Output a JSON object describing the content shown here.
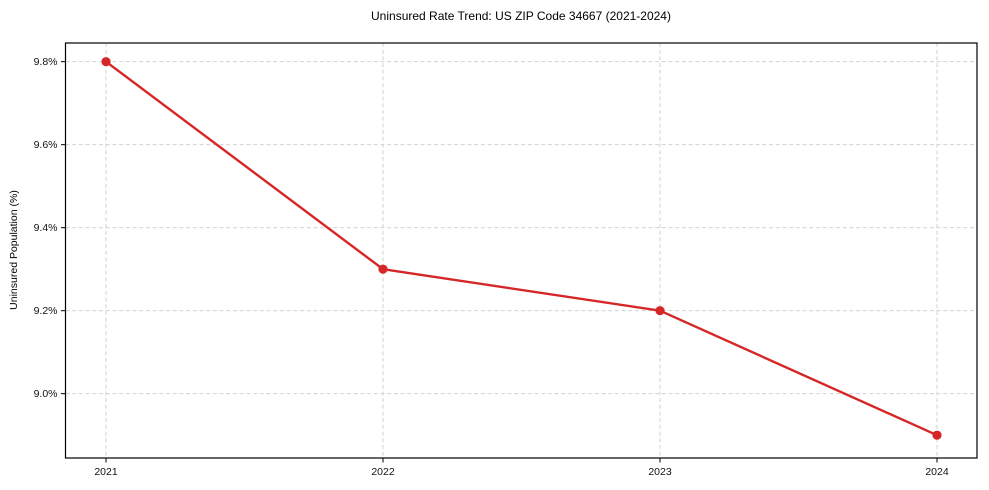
{
  "chart_data": {
    "type": "line",
    "title": "Uninsured Rate Trend: US ZIP Code 34667 (2021-2024)",
    "xlabel": "",
    "ylabel": "Uninsured Population (%)",
    "x": [
      "2021",
      "2022",
      "2023",
      "2024"
    ],
    "series": [
      {
        "values": [
          9.8,
          9.3,
          9.2,
          8.9
        ]
      }
    ],
    "ylim": [
      8.845,
      9.845
    ],
    "yticks": [
      9.0,
      9.2,
      9.4,
      9.6,
      9.8
    ],
    "ytick_labels": [
      "9.0%",
      "9.2%",
      "9.4%",
      "9.6%",
      "9.8%"
    ],
    "xtick_labels": [
      "2021",
      "2022",
      "2023",
      "2024"
    ],
    "grid": true,
    "grid_style": "dashed",
    "grid_color": "#cccccc",
    "legend_position": "none",
    "line_color": "#d62728",
    "marker": "circle",
    "axis_color": "#000000",
    "background_color": "#ffffff"
  }
}
